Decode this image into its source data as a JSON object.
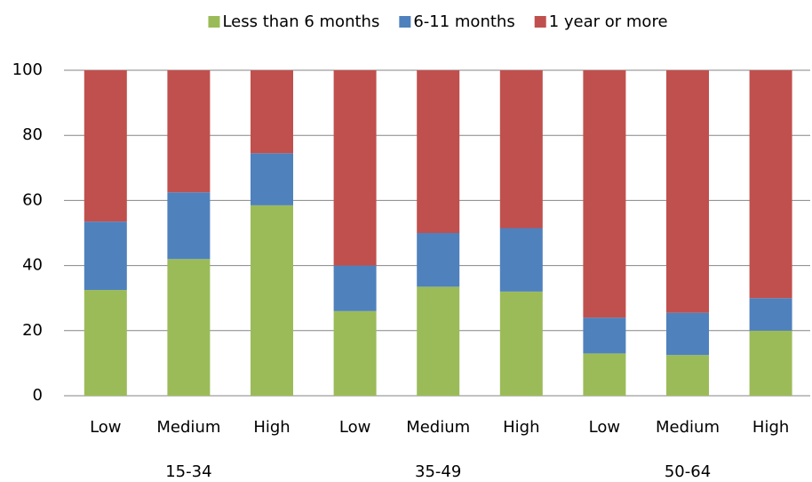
{
  "chart_data": {
    "type": "stacked-bar",
    "categories": [
      "Low",
      "Medium",
      "High",
      "Low",
      "Medium",
      "High",
      "Low",
      "Medium",
      "High"
    ],
    "groups": [
      "15-34",
      "35-49",
      "50-64"
    ],
    "series": [
      {
        "name": "Less than 6 months",
        "color": "#9bbb59",
        "values": [
          32.5,
          42,
          58.5,
          26,
          33.5,
          32,
          13,
          12.5,
          20
        ]
      },
      {
        "name": "6-11 months",
        "color": "#4f81bd",
        "values": [
          21,
          20.5,
          16,
          14,
          16.5,
          19.5,
          11,
          13,
          10
        ]
      },
      {
        "name": "1 year or more",
        "color": "#c0504d",
        "values": [
          46.5,
          37.5,
          25.5,
          60,
          50,
          48.5,
          76,
          74.5,
          70
        ]
      }
    ],
    "ylim": [
      0,
      100
    ],
    "yticks": [
      0,
      20,
      40,
      60,
      80,
      100
    ],
    "grid": true,
    "legend": "top"
  }
}
